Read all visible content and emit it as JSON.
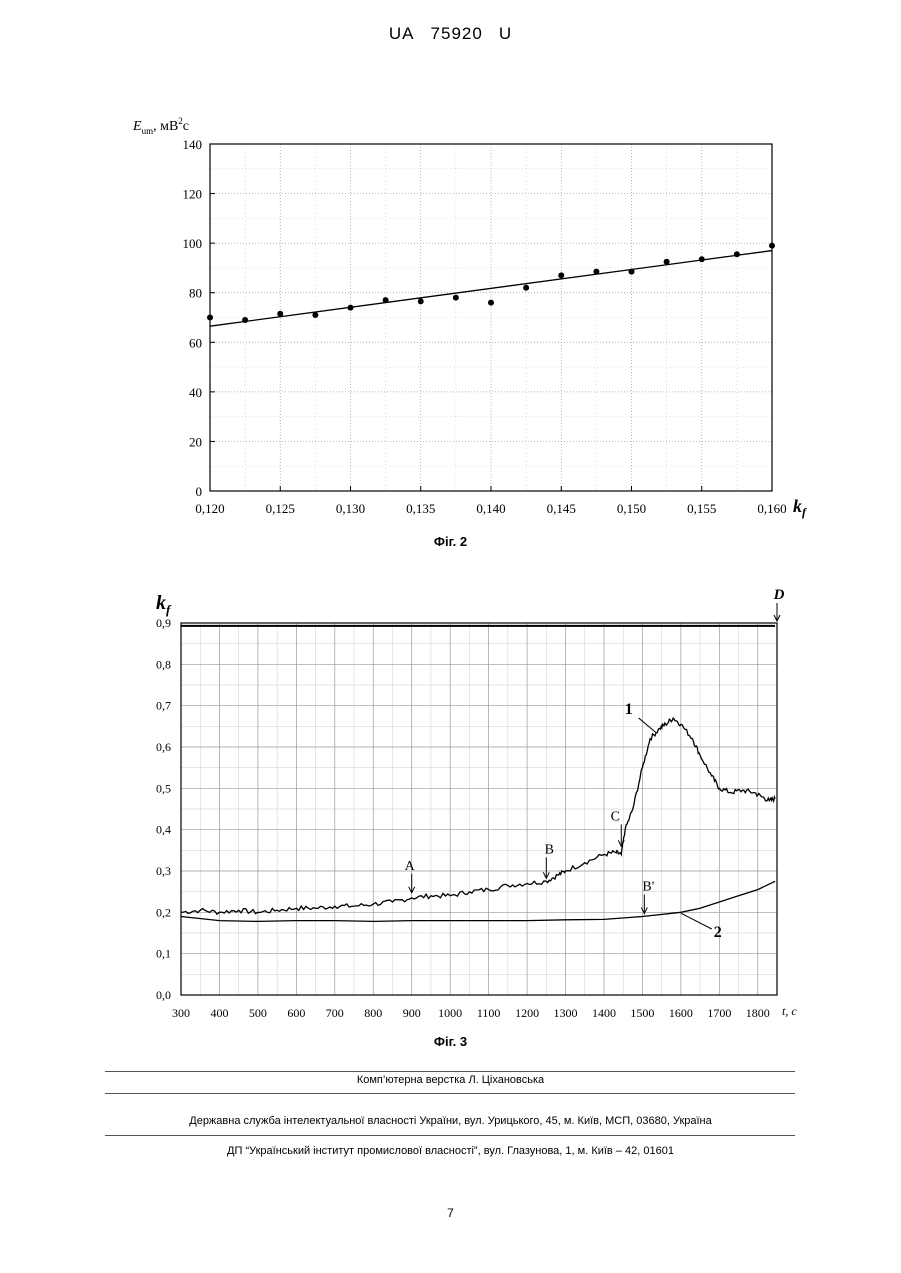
{
  "header": {
    "prefix": "UA",
    "number": "75920",
    "suffix": "U"
  },
  "figure2": {
    "caption": "Фіг. 2",
    "ylabel_main": "E",
    "ylabel_sub": "um",
    "ylabel_unit": ", мВ",
    "ylabel_exp": "2",
    "ylabel_unit2": "c",
    "xlabel_main": "k",
    "xlabel_sub": "f"
  },
  "figure3": {
    "caption": "Фіг. 3",
    "ylabel_main": "k",
    "ylabel_sub": "f",
    "xlabel": "t, c",
    "annotations": {
      "A": "A",
      "B": "B",
      "C": "C",
      "Bp": "B'",
      "D": "D",
      "curve1": "1",
      "curve2": "2"
    }
  },
  "chart_data": [
    {
      "type": "scatter",
      "title": "",
      "xlabel": "kf",
      "ylabel": "Eum, мВ²с",
      "xlim": [
        0.12,
        0.16
      ],
      "ylim": [
        0,
        140
      ],
      "xticks": [
        "0,120",
        "0,125",
        "0,130",
        "0,135",
        "0,140",
        "0,145",
        "0,150",
        "0,155",
        "0,160"
      ],
      "yticks": [
        "0",
        "20",
        "40",
        "60",
        "80",
        "100",
        "120",
        "140"
      ],
      "grid": true,
      "points": [
        [
          0.12,
          70
        ],
        [
          0.1225,
          69
        ],
        [
          0.125,
          71.5
        ],
        [
          0.1275,
          71
        ],
        [
          0.13,
          74
        ],
        [
          0.1325,
          77
        ],
        [
          0.135,
          76.5
        ],
        [
          0.1375,
          78
        ],
        [
          0.14,
          76
        ],
        [
          0.1425,
          82
        ],
        [
          0.145,
          87
        ],
        [
          0.1475,
          88.5
        ],
        [
          0.15,
          88.5
        ],
        [
          0.1525,
          92.5
        ],
        [
          0.155,
          93.5
        ],
        [
          0.1575,
          95.5
        ],
        [
          0.16,
          99
        ]
      ],
      "fit_line": [
        [
          0.12,
          66.5
        ],
        [
          0.16,
          97
        ]
      ]
    },
    {
      "type": "line",
      "title": "",
      "xlabel": "t, c",
      "ylabel": "kf",
      "xlim": [
        300,
        1850
      ],
      "ylim": [
        0,
        0.9
      ],
      "xticks": [
        "300",
        "400",
        "500",
        "600",
        "700",
        "800",
        "900",
        "1000",
        "1100",
        "1200",
        "1300",
        "1400",
        "1500",
        "1600",
        "1700",
        "1800"
      ],
      "yticks": [
        "0,0",
        "0,1",
        "0,2",
        "0,3",
        "0,4",
        "0,5",
        "0,6",
        "0,7",
        "0,8",
        "0,9"
      ],
      "grid": true,
      "series": [
        {
          "name": "1",
          "points": [
            [
              300,
              0.2
            ],
            [
              350,
              0.205
            ],
            [
              400,
              0.2
            ],
            [
              450,
              0.205
            ],
            [
              500,
              0.2
            ],
            [
              550,
              0.205
            ],
            [
              600,
              0.21
            ],
            [
              650,
              0.21
            ],
            [
              700,
              0.215
            ],
            [
              750,
              0.215
            ],
            [
              800,
              0.22
            ],
            [
              850,
              0.225
            ],
            [
              900,
              0.235
            ],
            [
              950,
              0.24
            ],
            [
              1000,
              0.24
            ],
            [
              1050,
              0.25
            ],
            [
              1100,
              0.255
            ],
            [
              1150,
              0.265
            ],
            [
              1200,
              0.27
            ],
            [
              1250,
              0.275
            ],
            [
              1280,
              0.29
            ],
            [
              1300,
              0.3
            ],
            [
              1350,
              0.32
            ],
            [
              1400,
              0.34
            ],
            [
              1430,
              0.345
            ],
            [
              1445,
              0.34
            ],
            [
              1455,
              0.4
            ],
            [
              1475,
              0.45
            ],
            [
              1500,
              0.55
            ],
            [
              1520,
              0.62
            ],
            [
              1545,
              0.645
            ],
            [
              1560,
              0.655
            ],
            [
              1580,
              0.67
            ],
            [
              1600,
              0.655
            ],
            [
              1630,
              0.62
            ],
            [
              1650,
              0.58
            ],
            [
              1680,
              0.53
            ],
            [
              1700,
              0.5
            ],
            [
              1730,
              0.49
            ],
            [
              1760,
              0.495
            ],
            [
              1790,
              0.49
            ],
            [
              1810,
              0.48
            ],
            [
              1830,
              0.47
            ],
            [
              1845,
              0.475
            ]
          ]
        },
        {
          "name": "2",
          "points": [
            [
              300,
              0.19
            ],
            [
              400,
              0.18
            ],
            [
              500,
              0.178
            ],
            [
              600,
              0.18
            ],
            [
              700,
              0.18
            ],
            [
              800,
              0.178
            ],
            [
              900,
              0.18
            ],
            [
              1000,
              0.18
            ],
            [
              1100,
              0.18
            ],
            [
              1200,
              0.18
            ],
            [
              1300,
              0.182
            ],
            [
              1400,
              0.183
            ],
            [
              1500,
              0.19
            ],
            [
              1600,
              0.2
            ],
            [
              1650,
              0.21
            ],
            [
              1700,
              0.225
            ],
            [
              1750,
              0.24
            ],
            [
              1800,
              0.255
            ],
            [
              1845,
              0.275
            ]
          ]
        },
        {
          "name": "D",
          "points": [
            [
              300,
              0.893
            ],
            [
              1845,
              0.893
            ]
          ]
        }
      ],
      "annotations": [
        {
          "label": "A",
          "x": 900,
          "y": 0.24
        },
        {
          "label": "B",
          "x": 1250,
          "y": 0.28
        },
        {
          "label": "C",
          "x": 1445,
          "y": 0.35
        },
        {
          "label": "B'",
          "x": 1505,
          "y": 0.19
        },
        {
          "label": "D",
          "x": 1845,
          "y": 0.9
        },
        {
          "label": "1",
          "x": 1535,
          "y": 0.66
        },
        {
          "label": "2",
          "x": 1650,
          "y": 0.2
        }
      ]
    }
  ],
  "footer": {
    "line1": "Комп’ютерна верстка Л. Ціхановська",
    "line2": "Державна служба інтелектуальної власності України, вул. Урицького, 45, м. Київ, МСП, 03680, Україна",
    "line3": "ДП “Український інститут промислової власності”, вул. Глазунова, 1, м. Київ – 42, 01601"
  },
  "page_number": "7"
}
